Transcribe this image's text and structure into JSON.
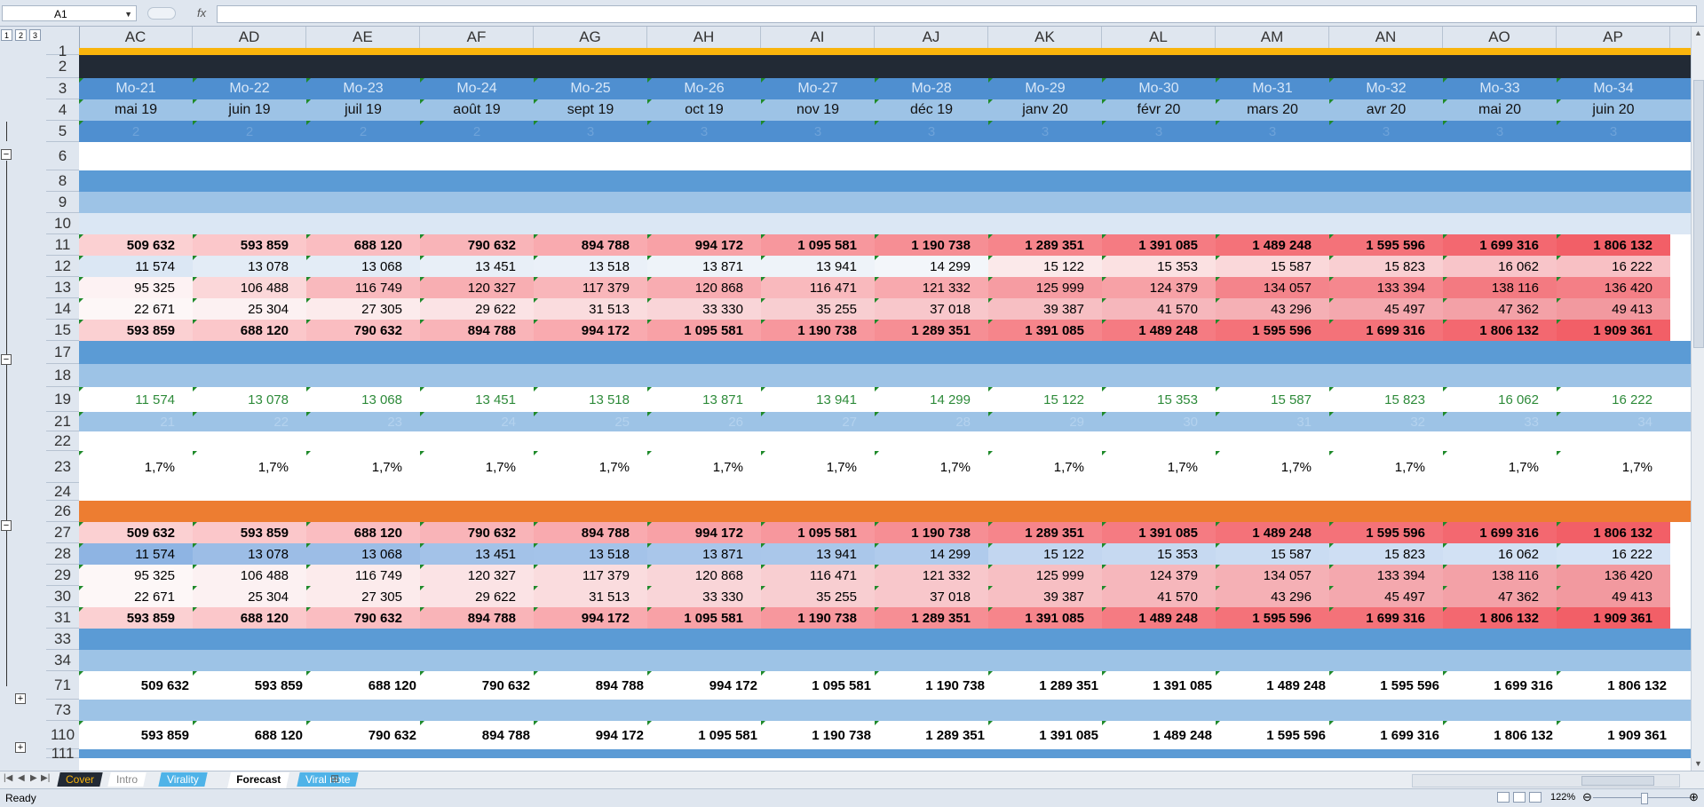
{
  "formula_bar": {
    "name_box": "A1",
    "fx": "fx",
    "formula": ""
  },
  "outline_levels": [
    "1",
    "2",
    "3"
  ],
  "columns": [
    "AC",
    "AD",
    "AE",
    "AF",
    "AG",
    "AH",
    "AI",
    "AJ",
    "AK",
    "AL",
    "AM",
    "AN",
    "AO",
    "AP"
  ],
  "rows": [
    {
      "num": "1",
      "h": 8,
      "bg": "#f9b40c",
      "cells": []
    },
    {
      "num": "2",
      "h": 26,
      "bg": "#222a35",
      "cells": []
    },
    {
      "num": "3",
      "h": 24,
      "bg": "#4f8fd0",
      "color": "#d8e7f7",
      "center": true,
      "size": 16,
      "cells": [
        "Mo-21",
        "Mo-22",
        "Mo-23",
        "Mo-24",
        "Mo-25",
        "Mo-26",
        "Mo-27",
        "Mo-28",
        "Mo-29",
        "Mo-30",
        "Mo-31",
        "Mo-32",
        "Mo-33",
        "Mo-34"
      ]
    },
    {
      "num": "4",
      "h": 24,
      "bg": "#9dc3e6",
      "color": "#111",
      "center": true,
      "size": 16,
      "cells": [
        "mai 19",
        "juin 19",
        "juil 19",
        "août 19",
        "sept 19",
        "oct 19",
        "nov 19",
        "déc 19",
        "janv 20",
        "févr 20",
        "mars 20",
        "avr 20",
        "mai 20",
        "juin 20"
      ]
    },
    {
      "num": "5",
      "h": 24,
      "bg": "#4f8fd0",
      "color": "#6ea3d9",
      "center": true,
      "size": 15,
      "cells": [
        "2",
        "2",
        "2",
        "2",
        "3",
        "3",
        "3",
        "3",
        "3",
        "3",
        "3",
        "3",
        "3",
        "3"
      ]
    },
    {
      "num": "6",
      "h": 32,
      "bg": "#ffffff",
      "cells": []
    },
    {
      "num": "8",
      "h": 24,
      "bg": "#5b9bd5",
      "cells": []
    },
    {
      "num": "9",
      "h": 24,
      "bg": "#9dc3e6",
      "cells": []
    },
    {
      "num": "10",
      "h": 24,
      "bg": "#dbe7f4",
      "cells": []
    },
    {
      "num": "11",
      "h": 24,
      "bold": true,
      "heat": "a",
      "cells": [
        "509 632",
        "593 859",
        "688 120",
        "790 632",
        "894 788",
        "994 172",
        "1 095 581",
        "1 190 738",
        "1 289 351",
        "1 391 085",
        "1 489 248",
        "1 595 596",
        "1 699 316",
        "1 806 132"
      ]
    },
    {
      "num": "12",
      "h": 24,
      "heat": "b",
      "cells": [
        "11 574",
        "13 078",
        "13 068",
        "13 451",
        "13 518",
        "13 871",
        "13 941",
        "14 299",
        "15 122",
        "15 353",
        "15 587",
        "15 823",
        "16 062",
        "16 222"
      ]
    },
    {
      "num": "13",
      "h": 24,
      "heat": "c",
      "cells": [
        "95 325",
        "106 488",
        "116 749",
        "120 327",
        "117 379",
        "120 868",
        "116 471",
        "121 332",
        "125 999",
        "124 379",
        "134 057",
        "133 394",
        "138 116",
        "136 420"
      ]
    },
    {
      "num": "14",
      "h": 24,
      "heat": "d",
      "cells": [
        "22 671",
        "25 304",
        "27 305",
        "29 622",
        "31 513",
        "33 330",
        "35 255",
        "37 018",
        "39 387",
        "41 570",
        "43 296",
        "45 497",
        "47 362",
        "49 413"
      ]
    },
    {
      "num": "15",
      "h": 24,
      "bold": true,
      "heat": "a",
      "cells": [
        "593 859",
        "688 120",
        "790 632",
        "894 788",
        "994 172",
        "1 095 581",
        "1 190 738",
        "1 289 351",
        "1 391 085",
        "1 489 248",
        "1 595 596",
        "1 699 316",
        "1 806 132",
        "1 909 361"
      ]
    },
    {
      "num": "17",
      "h": 26,
      "bg": "#5b9bd5",
      "cells": []
    },
    {
      "num": "18",
      "h": 26,
      "bg": "#9dc3e6",
      "cells": []
    },
    {
      "num": "19",
      "h": 28,
      "bg": "#ffffff",
      "color": "#2e8b3a",
      "cells": [
        "11 574",
        "13 078",
        "13 068",
        "13 451",
        "13 518",
        "13 871",
        "13 941",
        "14 299",
        "15 122",
        "15 353",
        "15 587",
        "15 823",
        "16 062",
        "16 222"
      ]
    },
    {
      "num": "21",
      "h": 22,
      "bg": "#9dc3e6",
      "color": "#b4d2ee",
      "cells": [
        "21",
        "22",
        "23",
        "24",
        "25",
        "26",
        "27",
        "28",
        "29",
        "30",
        "31",
        "32",
        "33",
        "34"
      ]
    },
    {
      "num": "22",
      "h": 22,
      "bg": "#ffffff",
      "cells": []
    },
    {
      "num": "23",
      "h": 36,
      "bg": "#ffffff",
      "cells": [
        "1,7%",
        "1,7%",
        "1,7%",
        "1,7%",
        "1,7%",
        "1,7%",
        "1,7%",
        "1,7%",
        "1,7%",
        "1,7%",
        "1,7%",
        "1,7%",
        "1,7%",
        "1,7%"
      ]
    },
    {
      "num": "24",
      "h": 20,
      "bg": "#ffffff",
      "cells": []
    },
    {
      "num": "26",
      "h": 24,
      "bg": "#ed7d31",
      "cells": []
    },
    {
      "num": "27",
      "h": 24,
      "bold": true,
      "heat": "a",
      "cells": [
        "509 632",
        "593 859",
        "688 120",
        "790 632",
        "894 788",
        "994 172",
        "1 095 581",
        "1 190 738",
        "1 289 351",
        "1 391 085",
        "1 489 248",
        "1 595 596",
        "1 699 316",
        "1 806 132"
      ]
    },
    {
      "num": "28",
      "h": 24,
      "heat": "e",
      "cells": [
        "11 574",
        "13 078",
        "13 068",
        "13 451",
        "13 518",
        "13 871",
        "13 941",
        "14 299",
        "15 122",
        "15 353",
        "15 587",
        "15 823",
        "16 062",
        "16 222"
      ]
    },
    {
      "num": "29",
      "h": 24,
      "heat": "d",
      "cells": [
        "95 325",
        "106 488",
        "116 749",
        "120 327",
        "117 379",
        "120 868",
        "116 471",
        "121 332",
        "125 999",
        "124 379",
        "134 057",
        "133 394",
        "138 116",
        "136 420"
      ]
    },
    {
      "num": "30",
      "h": 24,
      "heat": "d",
      "cells": [
        "22 671",
        "25 304",
        "27 305",
        "29 622",
        "31 513",
        "33 330",
        "35 255",
        "37 018",
        "39 387",
        "41 570",
        "43 296",
        "45 497",
        "47 362",
        "49 413"
      ]
    },
    {
      "num": "31",
      "h": 24,
      "bold": true,
      "heat": "a",
      "cells": [
        "593 859",
        "688 120",
        "790 632",
        "894 788",
        "994 172",
        "1 095 581",
        "1 190 738",
        "1 289 351",
        "1 391 085",
        "1 489 248",
        "1 595 596",
        "1 699 316",
        "1 806 132",
        "1 909 361"
      ]
    },
    {
      "num": "33",
      "h": 24,
      "bg": "#5b9bd5",
      "cells": []
    },
    {
      "num": "34",
      "h": 24,
      "bg": "#9dc3e6",
      "cells": []
    },
    {
      "num": "71",
      "h": 32,
      "bg": "#ffffff",
      "bold": true,
      "pad": 4,
      "cells": [
        "509 632",
        "593 859",
        "688 120",
        "790 632",
        "894 788",
        "994 172",
        "1 095 581",
        "1 190 738",
        "1 289 351",
        "1 391 085",
        "1 489 248",
        "1 595 596",
        "1 699 316",
        "1 806 132"
      ]
    },
    {
      "num": "73",
      "h": 24,
      "bg": "#9dc3e6",
      "cells": []
    },
    {
      "num": "110",
      "h": 32,
      "bg": "#ffffff",
      "bold": true,
      "pad": 4,
      "cells": [
        "593 859",
        "688 120",
        "790 632",
        "894 788",
        "994 172",
        "1 095 581",
        "1 190 738",
        "1 289 351",
        "1 391 085",
        "1 489 248",
        "1 595 596",
        "1 699 316",
        "1 806 132",
        "1 909 361"
      ]
    },
    {
      "num": "111",
      "h": 10,
      "bg": "#5b9bd5",
      "cells": []
    }
  ],
  "sheet_tabs": [
    {
      "label": "Cover",
      "bg": "#222a35",
      "color": "#f9b40c",
      "active": false
    },
    {
      "label": "Intro",
      "bg": "#ffffff",
      "color": "#888888",
      "active": false
    },
    {
      "label": "Virality",
      "bg": "#4fb3e8",
      "color": "#ffffff",
      "active": false
    },
    {
      "label": "Forecast",
      "bg": "#ffffff",
      "color": "#000000",
      "active": true
    },
    {
      "label": "Viral note",
      "bg": "#4fb3e8",
      "color": "#ffffff",
      "active": false
    }
  ],
  "status": {
    "ready": "Ready",
    "zoom": "122%"
  },
  "colors": {
    "heat_strong": "#f4777d",
    "heat_mid": "#f8a2a6",
    "heat_light": "#fbd0d2",
    "blue_light": "#dbe7f4",
    "blue_mid": "#9dc3e6"
  }
}
